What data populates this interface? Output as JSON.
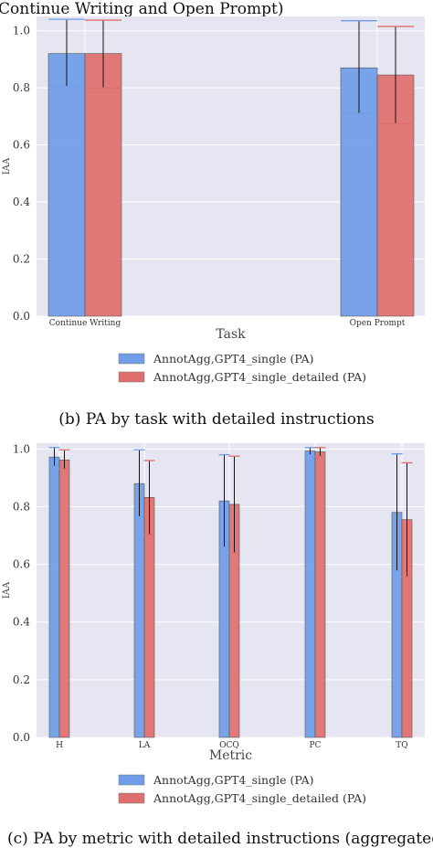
{
  "captions": {
    "top": "Continue Writing and Open Prompt)",
    "middle": "(b) PA by task with detailed instructions",
    "bottom": "(c) PA by metric with detailed instructions (aggregated"
  },
  "colors": {
    "series_a": "#6f9de8",
    "series_b": "#de6f6d",
    "plot_bg": "#e6e6f2",
    "grid": "#ffffff"
  },
  "chart_data": [
    {
      "type": "bar",
      "title": "",
      "xlabel": "Task",
      "ylabel": "IAA",
      "ylim": [
        0,
        1.05
      ],
      "yticks": [
        "0.0",
        "0.2",
        "0.4",
        "0.6",
        "0.8",
        "1.0"
      ],
      "categories": [
        "Continue Writing",
        "Open Prompt"
      ],
      "series": [
        {
          "name": "AnnotAgg,GPT4_single (PA)",
          "values": [
            0.92,
            0.87
          ],
          "err_low": [
            0.805,
            0.71
          ],
          "err_high": [
            1.04,
            1.035
          ]
        },
        {
          "name": "AnnotAgg,GPT4_single_detailed (PA)",
          "values": [
            0.92,
            0.845
          ],
          "err_low": [
            0.8,
            0.675
          ],
          "err_high": [
            1.037,
            1.015
          ]
        }
      ],
      "legend": "bottom-center",
      "grid": true
    },
    {
      "type": "bar",
      "title": "",
      "xlabel": "Metric",
      "ylabel": "IAA",
      "ylim": [
        0,
        1.02
      ],
      "yticks": [
        "0.0",
        "0.2",
        "0.4",
        "0.6",
        "0.8",
        "1.0"
      ],
      "categories": [
        "H",
        "LA",
        "OCQ",
        "PC",
        "TQ"
      ],
      "series": [
        {
          "name": "AnnotAgg,GPT4_single (PA)",
          "values": [
            0.972,
            0.88,
            0.82,
            0.993,
            0.78
          ],
          "err_low": [
            0.94,
            0.765,
            0.66,
            0.98,
            0.578
          ],
          "err_high": [
            1.005,
            0.997,
            0.98,
            1.005,
            0.983
          ]
        },
        {
          "name": "AnnotAgg,GPT4_single_detailed (PA)",
          "values": [
            0.962,
            0.832,
            0.808,
            0.99,
            0.755
          ],
          "err_low": [
            0.93,
            0.703,
            0.64,
            0.975,
            0.557
          ],
          "err_high": [
            0.997,
            0.96,
            0.975,
            1.005,
            0.952
          ]
        }
      ],
      "legend": "bottom-center",
      "grid": true
    }
  ]
}
